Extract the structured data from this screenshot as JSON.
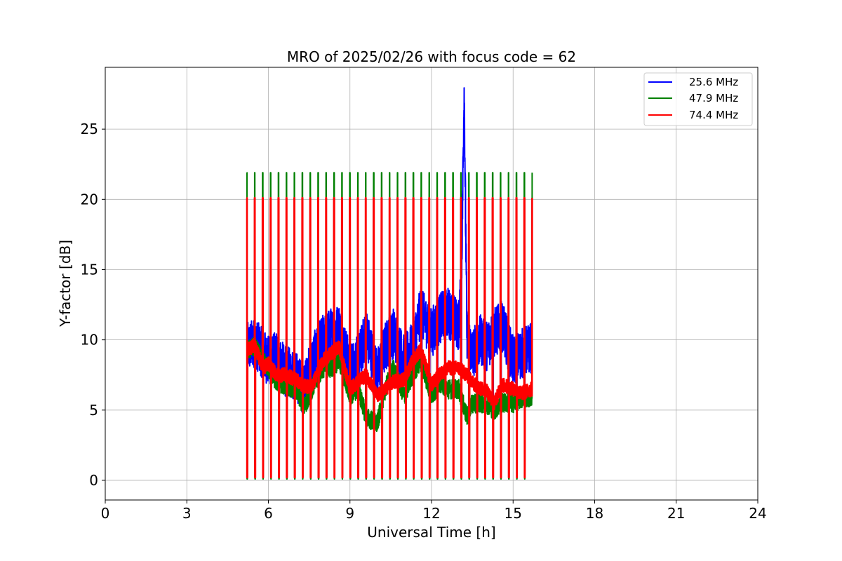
{
  "chart_data": {
    "type": "line",
    "title": "MRO of 2025/02/26 with focus code = 62",
    "xlabel": "Universal Time [h]",
    "ylabel": "Y-factor [dB]",
    "xlim": [
      0,
      24
    ],
    "ylim": [
      -1.4,
      29.4
    ],
    "xticks": [
      0,
      3,
      6,
      9,
      12,
      15,
      18,
      21,
      24
    ],
    "yticks": [
      0,
      5,
      10,
      15,
      20,
      25
    ],
    "grid": true,
    "legend_position": "top-right",
    "calibration_pulses": {
      "start_h": 5.2,
      "end_h": 15.7,
      "count": 36,
      "high_db": 20.1,
      "low_db": 0.2,
      "green_high_db": 21.9,
      "green_low_db": 0.1
    },
    "series": [
      {
        "name": "25.6 MHz",
        "color": "#0000ff",
        "x": [
          5.2,
          5.5,
          5.8,
          6.0,
          6.3,
          6.6,
          7.0,
          7.3,
          7.6,
          8.0,
          8.3,
          8.6,
          9.0,
          9.3,
          9.6,
          10.0,
          10.3,
          10.6,
          11.0,
          11.3,
          11.6,
          12.0,
          12.3,
          12.6,
          13.0,
          13.1,
          13.2,
          13.3,
          13.5,
          13.8,
          14.0,
          14.3,
          14.6,
          15.0,
          15.3,
          15.7
        ],
        "y": [
          9.4,
          9.8,
          9.0,
          8.5,
          8.8,
          7.8,
          7.5,
          6.4,
          8.5,
          10.0,
          10.5,
          10.8,
          8.0,
          8.5,
          10.5,
          7.5,
          9.5,
          10.5,
          8.5,
          9.5,
          12.0,
          10.5,
          11.5,
          12.0,
          11.0,
          14.0,
          28.0,
          10.5,
          9.0,
          10.0,
          9.5,
          10.5,
          11.0,
          8.5,
          9.0,
          9.5
        ]
      },
      {
        "name": "47.9 MHz",
        "color": "#008000",
        "x": [
          5.2,
          5.5,
          5.8,
          6.0,
          6.3,
          6.6,
          7.0,
          7.3,
          7.6,
          8.0,
          8.3,
          8.6,
          9.0,
          9.3,
          9.6,
          10.0,
          10.3,
          10.6,
          11.0,
          11.3,
          11.6,
          12.0,
          12.3,
          12.6,
          13.0,
          13.3,
          13.5,
          13.8,
          14.0,
          14.3,
          14.6,
          15.0,
          15.3,
          15.7
        ],
        "y": [
          9.2,
          9.5,
          8.5,
          8.0,
          7.0,
          6.8,
          6.5,
          5.2,
          6.5,
          8.0,
          8.0,
          8.5,
          6.0,
          6.5,
          4.5,
          4.0,
          6.5,
          8.0,
          6.0,
          7.5,
          8.5,
          6.0,
          7.0,
          6.5,
          6.5,
          4.5,
          5.5,
          5.5,
          5.5,
          5.0,
          5.5,
          5.5,
          5.8,
          6.0
        ]
      },
      {
        "name": "74.4 MHz",
        "color": "#ff0000",
        "x": [
          5.2,
          5.5,
          5.8,
          6.0,
          6.3,
          6.6,
          7.0,
          7.3,
          7.6,
          8.0,
          8.3,
          8.6,
          9.0,
          9.3,
          9.6,
          10.0,
          10.3,
          10.6,
          11.0,
          11.3,
          11.6,
          12.0,
          12.3,
          12.6,
          13.0,
          13.3,
          13.5,
          13.8,
          14.0,
          14.3,
          14.6,
          15.0,
          15.3,
          15.7
        ],
        "y": [
          9.3,
          9.6,
          8.0,
          8.3,
          7.5,
          7.5,
          7.2,
          6.7,
          6.7,
          8.5,
          9.0,
          9.5,
          6.5,
          7.0,
          7.5,
          6.0,
          6.5,
          7.0,
          7.2,
          8.5,
          9.3,
          6.8,
          7.5,
          8.0,
          8.0,
          7.5,
          7.0,
          6.5,
          6.5,
          5.5,
          6.8,
          6.5,
          6.2,
          6.5
        ]
      }
    ]
  }
}
